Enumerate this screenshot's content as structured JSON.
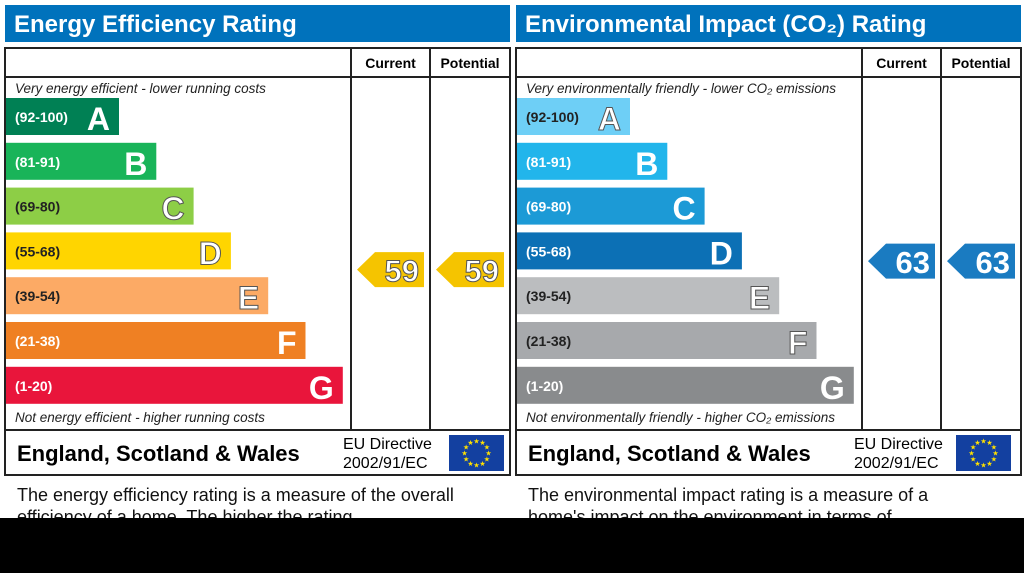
{
  "chart_data": [
    {
      "type": "bar",
      "title": "Energy Efficiency Rating",
      "columns": [
        "Current",
        "Potential"
      ],
      "top_note": "Very energy efficient - lower running costs",
      "bottom_note": "Not energy efficient - higher running costs",
      "bands": [
        {
          "range": "(92-100)",
          "letter": "A",
          "color": "#008054"
        },
        {
          "range": "(81-91)",
          "letter": "B",
          "color": "#19b459"
        },
        {
          "range": "(69-80)",
          "letter": "C",
          "color": "#8dce46"
        },
        {
          "range": "(55-68)",
          "letter": "D",
          "color": "#ffd500"
        },
        {
          "range": "(39-54)",
          "letter": "E",
          "color": "#fcaa65"
        },
        {
          "range": "(21-38)",
          "letter": "F",
          "color": "#ef8023"
        },
        {
          "range": "(1-20)",
          "letter": "G",
          "color": "#e9153b"
        }
      ],
      "current": {
        "value": 59,
        "band": "D",
        "color": "#f5c400"
      },
      "potential": {
        "value": 59,
        "band": "D",
        "color": "#f5c400"
      },
      "footer": {
        "region": "England, Scotland & Wales",
        "directive_line1": "EU Directive",
        "directive_line2": "2002/91/EC"
      },
      "description": "The energy efficiency rating is a measure of the overall efficiency of a home. The higher the rating"
    },
    {
      "type": "bar",
      "title": "Environmental Impact (CO₂) Rating",
      "columns": [
        "Current",
        "Potential"
      ],
      "top_note": "Very environmentally friendly - lower CO₂ emissions",
      "bottom_note": "Not environmentally friendly - higher CO₂ emissions",
      "bands": [
        {
          "range": "(92-100)",
          "letter": "A",
          "color": "#6ecff6"
        },
        {
          "range": "(81-91)",
          "letter": "B",
          "color": "#22b5eb"
        },
        {
          "range": "(69-80)",
          "letter": "C",
          "color": "#1c9ad6"
        },
        {
          "range": "(55-68)",
          "letter": "D",
          "color": "#0c70b5"
        },
        {
          "range": "(39-54)",
          "letter": "E",
          "color": "#bbbdbf"
        },
        {
          "range": "(21-38)",
          "letter": "F",
          "color": "#a7a9ac"
        },
        {
          "range": "(1-20)",
          "letter": "G",
          "color": "#898b8d"
        }
      ],
      "current": {
        "value": 63,
        "band": "D",
        "color": "#1a7bc1"
      },
      "potential": {
        "value": 63,
        "band": "D",
        "color": "#1a7bc1"
      },
      "footer": {
        "region": "England, Scotland & Wales",
        "directive_line1": "EU Directive",
        "directive_line2": "2002/91/EC"
      },
      "description": "The environmental impact rating is a measure of a home's impact on the environment in terms of"
    }
  ],
  "colors": {
    "header": "#0072bc",
    "eu_flag": "#1340a0",
    "eu_star": "#ffe100"
  }
}
